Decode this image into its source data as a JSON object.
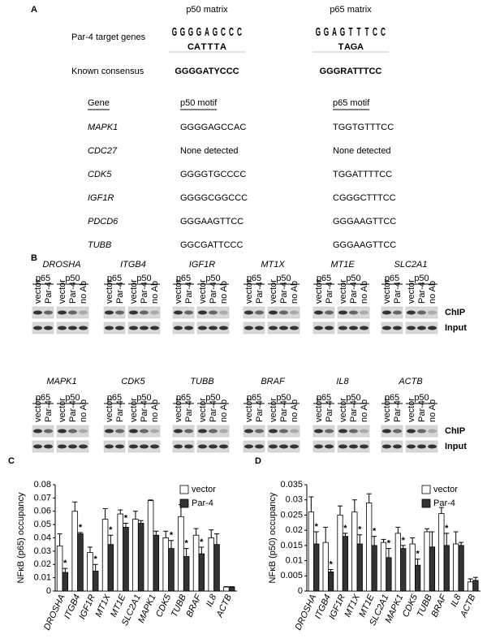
{
  "panel_a": {
    "label": "A",
    "matrix_headers": [
      "p50 matrix",
      "p65 matrix"
    ],
    "row_labels": [
      "Par-4 target genes",
      "Known consensus"
    ],
    "logos": [
      {
        "letters": "GGGGAGCCC",
        "lower": "CATTTA"
      },
      {
        "letters": "GGAGTTTCC",
        "lower": "TAGA"
      }
    ],
    "consensus": [
      "GGGGATYCCC",
      "GGGRATTTCC"
    ],
    "table": {
      "header": [
        "Gene",
        "p50 motif",
        "p65 motif"
      ],
      "rows": [
        [
          "MAPK1",
          "GGGGAGCCAC",
          "TGGTGTTTCC"
        ],
        [
          "CDC27",
          "None detected",
          "None detected"
        ],
        [
          "CDK5",
          "GGGGTGCCCC",
          "TGGATTTTCC"
        ],
        [
          "IGF1R",
          "GGGGCGGCCC",
          "CGGGCTTTCC"
        ],
        [
          "PDCD6",
          "GGGAAGTTCC",
          "GGGAAGTTCC"
        ],
        [
          "TUBB",
          "GGCGATTCCC",
          "GGGAAGTTCC"
        ]
      ]
    }
  },
  "panel_b": {
    "label": "B",
    "genes": [
      [
        "DROSHA",
        "ITGB4",
        "IGF1R",
        "MT1X",
        "MT1E",
        "SLC2A1"
      ],
      [
        "MAPK1",
        "CDK5",
        "TUBB",
        "BRAF",
        "IL8",
        "ACTB"
      ]
    ],
    "groups": [
      "p65",
      "p50"
    ],
    "lanes": [
      "vector",
      "Par-4",
      "no Ab"
    ],
    "blot_rows": [
      "ChIP",
      "Input"
    ]
  },
  "chart_data": [
    {
      "type": "bar",
      "label": "C",
      "y_label": "NFκB (p65) occupancy",
      "categories": [
        "DROSHA",
        "ITGB4",
        "IGF1R",
        "MT1X",
        "MT1E",
        "SLC2A1",
        "MAPK1",
        "CDK5",
        "TUBB",
        "BRAF",
        "IL8",
        "ACTB"
      ],
      "series": [
        {
          "name": "vector",
          "color": "#ffffff",
          "values": [
            0.034,
            0.06,
            0.029,
            0.054,
            0.058,
            0.054,
            0.068,
            0.04,
            0.056,
            0.042,
            0.04,
            0.003
          ],
          "errors": [
            0.009,
            0.007,
            0.004,
            0.008,
            0.003,
            0.006,
            0.0005,
            0.005,
            0.009,
            0.005,
            0.006,
            0.0003
          ]
        },
        {
          "name": "Par-4",
          "color": "#333333",
          "values": [
            0.014,
            0.043,
            0.015,
            0.035,
            0.048,
            0.051,
            0.042,
            0.032,
            0.026,
            0.028,
            0.035,
            0.003
          ],
          "errors": [
            0.003,
            0.001,
            0.005,
            0.007,
            0.003,
            0.002,
            0.003,
            0.006,
            0.006,
            0.005,
            0.008,
            0.0003
          ]
        }
      ],
      "significance": [
        true,
        true,
        true,
        true,
        true,
        false,
        false,
        true,
        true,
        true,
        false,
        false
      ],
      "significance_label": "*",
      "ylim": [
        0,
        0.08
      ],
      "yticks": [
        0,
        0.01,
        0.02,
        0.03,
        0.04,
        0.05,
        0.06,
        0.07,
        0.08
      ],
      "grid": false,
      "legend": "top-right"
    },
    {
      "type": "bar",
      "label": "D",
      "y_label": "NFκB (p50) occupancy",
      "categories": [
        "DROSHA",
        "ITGB4",
        "IGF1R",
        "MT1X",
        "MT1E",
        "SLC2A1",
        "MAPK1",
        "CDK5",
        "TUBB",
        "BRAF",
        "IL8",
        "ACTB"
      ],
      "series": [
        {
          "name": "vector",
          "color": "#ffffff",
          "values": [
            0.026,
            0.016,
            0.025,
            0.026,
            0.029,
            0.016,
            0.019,
            0.0155,
            0.0195,
            0.0255,
            0.0155,
            0.003
          ],
          "errors": [
            0.005,
            0.005,
            0.003,
            0.004,
            0.003,
            0.001,
            0.002,
            0.002,
            0.001,
            0.002,
            0.004,
            0.001
          ]
        },
        {
          "name": "Par-4",
          "color": "#333333",
          "values": [
            0.0155,
            0.0063,
            0.018,
            0.0155,
            0.015,
            0.011,
            0.014,
            0.0085,
            0.0145,
            0.015,
            0.015,
            0.0035
          ],
          "errors": [
            0.004,
            0.0008,
            0.001,
            0.003,
            0.003,
            0.003,
            0.001,
            0.002,
            0.005,
            0.004,
            0.001,
            0.001
          ]
        }
      ],
      "significance": [
        true,
        true,
        true,
        true,
        true,
        true,
        true,
        true,
        false,
        true,
        false,
        false
      ],
      "significance_label": "*",
      "ylim": [
        0,
        0.035
      ],
      "yticks": [
        0,
        0.005,
        0.01,
        0.015,
        0.02,
        0.025,
        0.03,
        0.035
      ],
      "grid": false,
      "legend": "top-right"
    }
  ]
}
